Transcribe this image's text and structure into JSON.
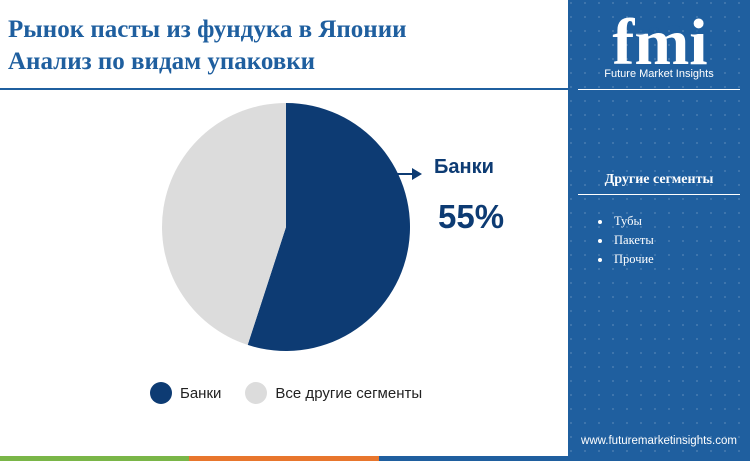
{
  "header": {
    "title_line1": "Рынок пасты из фундука в Японии",
    "title_line2": "Анализ по видам упаковки"
  },
  "chart_data": {
    "type": "pie",
    "slices": [
      {
        "label": "Банки",
        "value": 55,
        "color": "#0d3b73"
      },
      {
        "label": "Все другие сегменты",
        "value": 45,
        "color": "#dcdcdc"
      }
    ],
    "callout": {
      "label": "Банки",
      "value_text": "55%"
    },
    "legend": [
      "Банки",
      "Все другие сегменты"
    ],
    "legend_position": "bottom"
  },
  "sidebar": {
    "logo_letters": "fmi",
    "logo_text": "Future Market Insights",
    "segments_title": "Другие сегменты",
    "segments": [
      "Тубы",
      "Пакеты",
      "Прочие"
    ],
    "website": "www.futuremarketinsights.com"
  },
  "colors": {
    "brand_blue": "#1f5f9f",
    "dark_navy": "#0d3b73",
    "light_gray": "#dcdcdc",
    "bar_green": "#7ab648",
    "bar_orange": "#e8762d",
    "bar_blue": "#1f5f9f"
  }
}
